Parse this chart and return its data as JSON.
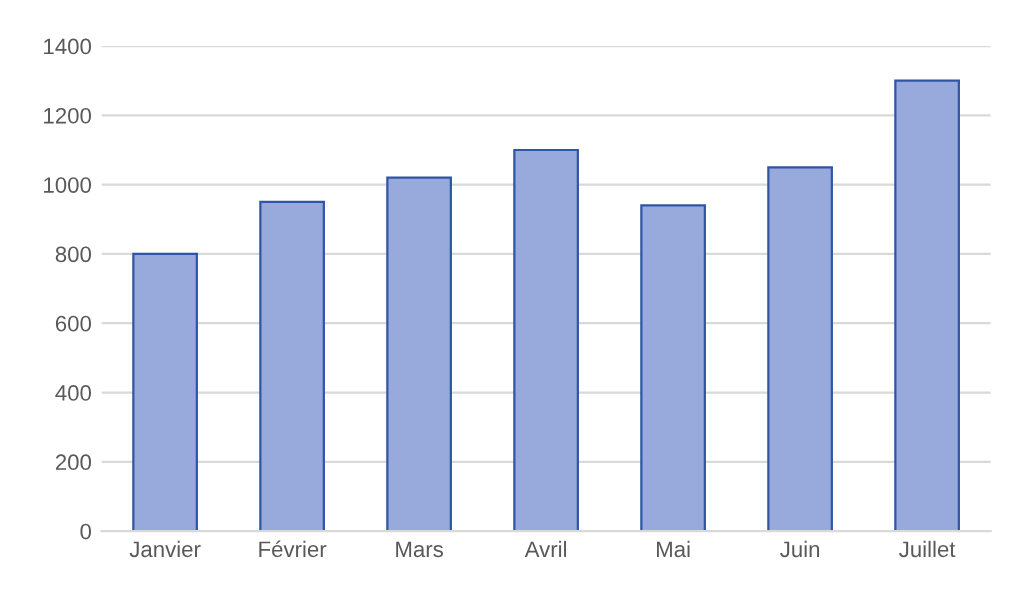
{
  "chart_data": {
    "type": "bar",
    "categories": [
      "Janvier",
      "Février",
      "Mars",
      "Avril",
      "Mai",
      "Juin",
      "Juillet"
    ],
    "values": [
      800,
      950,
      1020,
      1100,
      940,
      1050,
      1300
    ],
    "color": "#98a9dc",
    "ylim": [
      0,
      1400
    ],
    "yticks": [
      0,
      200,
      400,
      600,
      800,
      1000,
      1200,
      1400
    ],
    "grid": "y"
  }
}
